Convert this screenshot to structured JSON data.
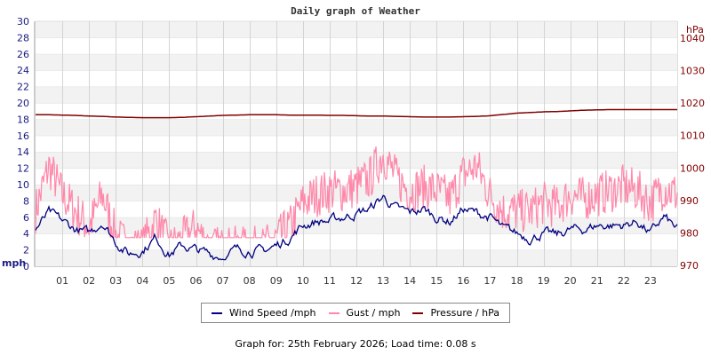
{
  "title": "Daily graph of Weather",
  "legend": [
    {
      "label": "Wind Speed /mph",
      "color": "#000080"
    },
    {
      "label": "Gust / mph",
      "color": "#ff88aa"
    },
    {
      "label": "Pressure / hPa",
      "color": "#800000"
    }
  ],
  "footer": "Graph for: 25th February 2026; Load time: 0.08 s",
  "chart_data": {
    "type": "line",
    "title": "Daily graph of Weather",
    "xlabel": "",
    "ylabel": "mph",
    "y2label": "hPa",
    "x_ticks": [
      "01",
      "02",
      "03",
      "04",
      "05",
      "06",
      "07",
      "08",
      "09",
      "10",
      "11",
      "12",
      "13",
      "14",
      "15",
      "16",
      "17",
      "18",
      "19",
      "20",
      "21",
      "22",
      "23"
    ],
    "xlim": [
      0,
      24
    ],
    "ylim": [
      0,
      30
    ],
    "y_ticks": [
      0,
      2,
      4,
      6,
      8,
      10,
      12,
      14,
      16,
      18,
      20,
      22,
      24,
      26,
      28,
      30
    ],
    "y2lim": [
      970,
      1045
    ],
    "y2_ticks": [
      970,
      980,
      990,
      1000,
      1010,
      1020,
      1030,
      1040
    ],
    "grid": true,
    "legend_position": "bottom",
    "x": [
      0,
      0.5,
      1,
      1.5,
      2,
      2.5,
      3,
      3.5,
      4,
      4.5,
      5,
      5.5,
      6,
      6.5,
      7,
      7.5,
      8,
      8.5,
      9,
      9.5,
      10,
      10.5,
      11,
      11.5,
      12,
      12.5,
      13,
      13.5,
      14,
      14.5,
      15,
      15.5,
      16,
      16.5,
      17,
      17.5,
      18,
      18.5,
      19,
      19.5,
      20,
      20.5,
      21,
      21.5,
      22,
      22.5,
      23,
      23.5,
      24
    ],
    "series": [
      {
        "name": "Wind Speed /mph",
        "axis": "left",
        "color": "#000080",
        "values": [
          4.5,
          6.5,
          5.5,
          4.5,
          4.0,
          5.5,
          3.0,
          1.5,
          2.0,
          3.5,
          1.5,
          2.5,
          2.0,
          1.5,
          1.2,
          2.0,
          2.0,
          1.8,
          2.5,
          3.5,
          5.0,
          5.5,
          5.5,
          6.0,
          6.5,
          7.0,
          8.5,
          7.0,
          6.5,
          7.0,
          6.0,
          5.5,
          7.0,
          6.5,
          6.0,
          4.5,
          4.0,
          3.5,
          4.0,
          3.8,
          4.5,
          4.5,
          5.0,
          5.0,
          5.0,
          5.5,
          4.0,
          6.0,
          4.5
        ]
      },
      {
        "name": "Gust / mph",
        "axis": "left",
        "color": "#ff88aa",
        "values": [
          8.0,
          13.5,
          10.0,
          8.0,
          6.0,
          10.0,
          5.0,
          3.5,
          3.5,
          7.0,
          3.5,
          4.5,
          6.0,
          3.5,
          3.5,
          3.5,
          3.5,
          3.5,
          4.5,
          6.0,
          9.0,
          10.0,
          10.5,
          10.5,
          11.0,
          12.0,
          15.0,
          12.0,
          10.5,
          11.0,
          10.5,
          9.5,
          12.5,
          13.5,
          10.0,
          8.0,
          8.0,
          8.0,
          9.0,
          8.5,
          10.0,
          9.5,
          10.0,
          10.5,
          11.0,
          10.5,
          9.0,
          11.0,
          10.0
        ]
      },
      {
        "name": "Pressure / hPa",
        "axis": "right",
        "color": "#800000",
        "values": [
          1016.4,
          1016.4,
          1016.3,
          1016.2,
          1016.0,
          1015.9,
          1015.7,
          1015.6,
          1015.5,
          1015.5,
          1015.5,
          1015.6,
          1015.8,
          1016.0,
          1016.2,
          1016.3,
          1016.4,
          1016.4,
          1016.4,
          1016.3,
          1016.3,
          1016.3,
          1016.2,
          1016.2,
          1016.1,
          1016.0,
          1016.0,
          1015.9,
          1015.8,
          1015.7,
          1015.7,
          1015.7,
          1015.8,
          1015.9,
          1016.1,
          1016.5,
          1016.9,
          1017.1,
          1017.3,
          1017.4,
          1017.6,
          1017.8,
          1017.9,
          1018.0,
          1018.0,
          1018.0,
          1018.0,
          1018.0,
          1018.0
        ]
      }
    ]
  }
}
